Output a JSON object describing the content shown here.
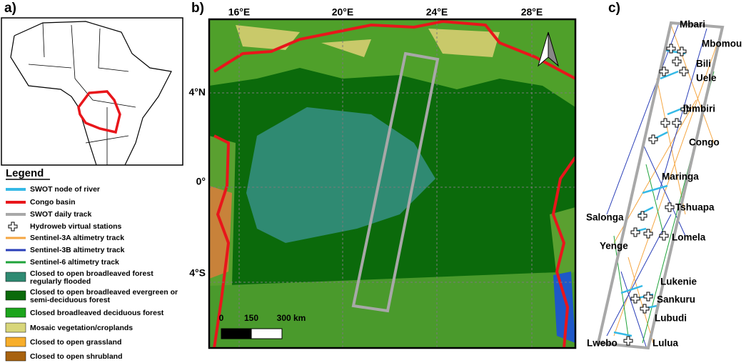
{
  "panels": {
    "a": {
      "label": "a)"
    },
    "b": {
      "label": "b)",
      "lon_labels": [
        "16°E",
        "20°E",
        "24°E",
        "28°E"
      ],
      "lat_labels": [
        "4°N",
        "0°",
        "4°S"
      ],
      "scale_labels": [
        "0",
        "150",
        "300 km"
      ]
    },
    "c": {
      "label": "c)",
      "rivers": [
        "Mbari",
        "Mbomou",
        "Bili",
        "Uele",
        "Itimbiri",
        "Congo",
        "Maringa",
        "Tshuapa",
        "Salonga",
        "Lomela",
        "Yenge",
        "Lukenie",
        "Sankuru",
        "Lubudi",
        "Lwebo",
        "Lulua"
      ]
    }
  },
  "legend": {
    "title": "Legend",
    "items": [
      [
        "SWOT node of river"
      ],
      [
        "Congo basin"
      ],
      [
        "SWOT daily track"
      ],
      [
        "Hydroweb virtual stations"
      ],
      [
        "Sentinel-3A altimetry track"
      ],
      [
        "Sentinel-3B altimetry track"
      ],
      [
        "Sentinel-6 altimetry track"
      ],
      [
        "Closed to open broadleaved forest",
        "regularly flooded"
      ],
      [
        "Closed to open broadleaved evergreen or",
        "semi-deciduous forest"
      ],
      [
        "Closed broadleaved deciduous forest"
      ],
      [
        "Mosaic vegetation/croplands"
      ],
      [
        "Closed to open grassland"
      ],
      [
        "Closed to open shrubland"
      ]
    ]
  }
}
